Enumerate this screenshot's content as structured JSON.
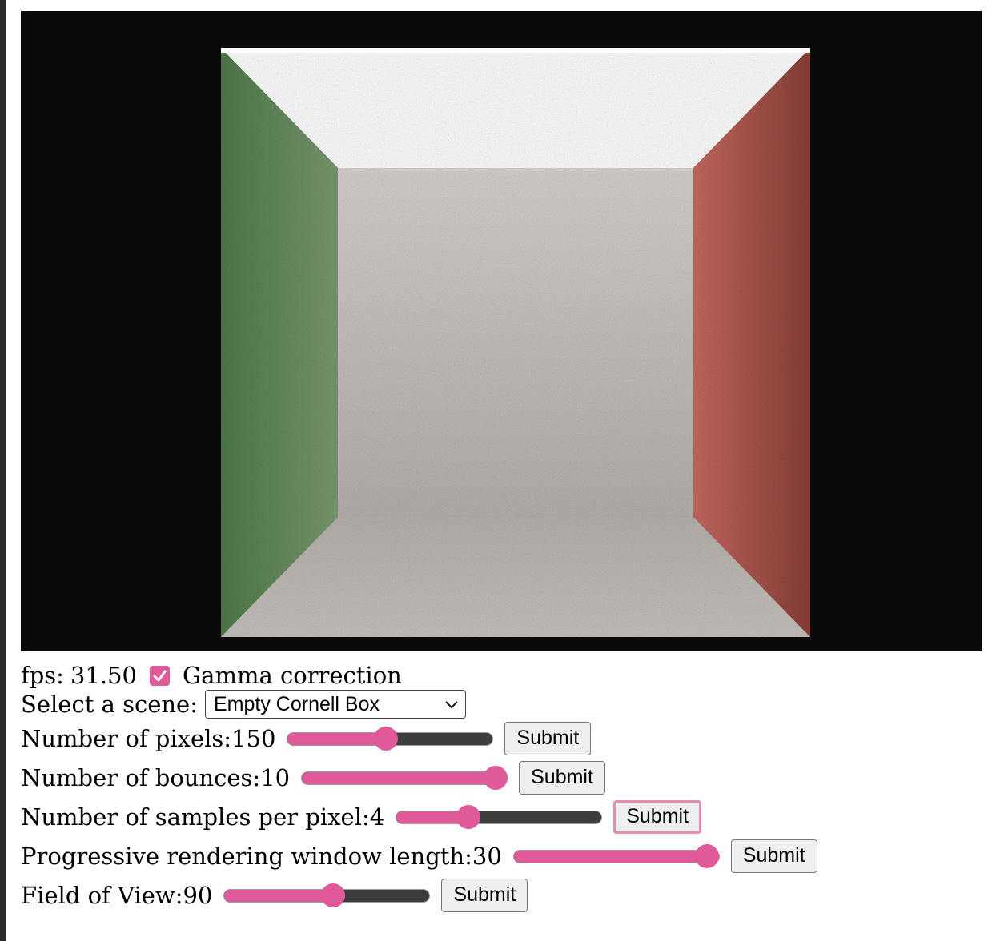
{
  "render": {
    "fps_label": "fps:",
    "fps_value": "31.50"
  },
  "gamma": {
    "label": "Gamma correction",
    "checked": true
  },
  "scene": {
    "label": "Select a scene:",
    "selected": "Empty Cornell Box"
  },
  "sliders": [
    {
      "id": "pixels",
      "label": "Number of pixels:",
      "value": "150",
      "fraction": 0.48,
      "submit_label": "Submit"
    },
    {
      "id": "bounces",
      "label": "Number of bounces:",
      "value": "10",
      "fraction": 0.94,
      "submit_label": "Submit"
    },
    {
      "id": "samples",
      "label": "Number of samples per pixel:",
      "value": "4",
      "fraction": 0.35,
      "submit_label": "Submit",
      "focused": true
    },
    {
      "id": "window",
      "label": "Progressive rendering window length:",
      "value": "30",
      "fraction": 0.94,
      "submit_label": "Submit"
    },
    {
      "id": "fov",
      "label": "Field of View:",
      "value": "90",
      "fraction": 0.53,
      "submit_label": "Submit"
    }
  ],
  "colors": {
    "accent": "#e05a9a",
    "canvas_bg": "#0a0a0a",
    "left_wall": "#5c8a55",
    "right_wall": "#b04a40",
    "back_wall": "#c6bfba",
    "ceiling": "#ffffff",
    "floor": "#bcb6b2"
  }
}
